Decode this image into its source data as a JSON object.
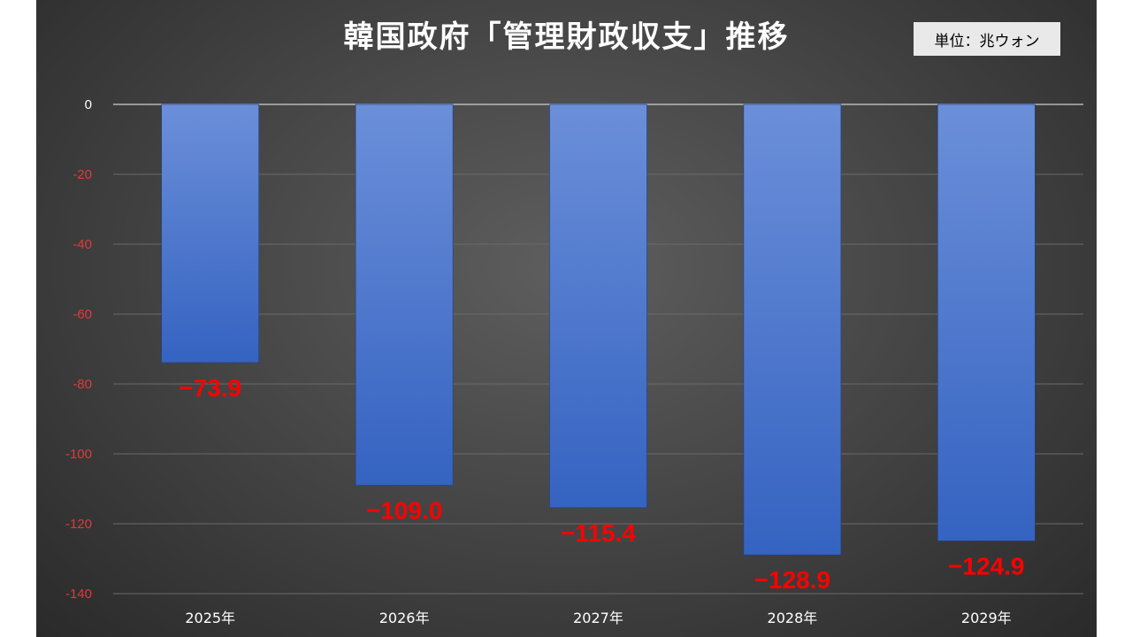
{
  "chart_data": {
    "type": "bar",
    "title": "韓国政府「管理財政収支」推移",
    "unit_label": "単位：兆ウォン",
    "categories": [
      "2025年",
      "2026年",
      "2027年",
      "2028年",
      "2029年"
    ],
    "values": [
      -73.9,
      -109.0,
      -115.4,
      -128.9,
      -124.9
    ],
    "data_labels": [
      "−73.9",
      "−109.0",
      "−115.4",
      "−128.9",
      "−124.9"
    ],
    "ylim": [
      -140,
      0
    ],
    "y_ticks": [
      0,
      -20,
      -40,
      -60,
      -80,
      -100,
      -120,
      -140
    ],
    "y_tick_labels": [
      "0",
      "-20",
      "-40",
      "-60",
      "-80",
      "-100",
      "-120",
      "-140"
    ],
    "grid": true,
    "colors": {
      "bar_top": "#6b8fd9",
      "bar_bottom": "#3563c1",
      "data_label": "#ff0000",
      "y_tick_negative": "#e03a3a",
      "y_tick_zero": "#ffffff",
      "x_tick": "#ffffff",
      "gridline": "#6a6a6a",
      "zero_line": "#cfcfcf"
    }
  }
}
